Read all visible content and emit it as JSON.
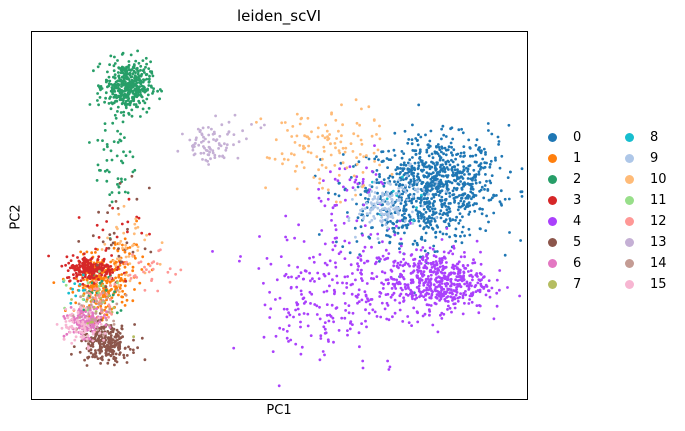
{
  "chart_data": {
    "type": "scatter",
    "title": "leiden_scVI",
    "xlabel": "PC1",
    "ylabel": "PC2",
    "grid": false,
    "xticks": [],
    "yticks": [],
    "xlim": [
      0,
      100
    ],
    "ylim": [
      0,
      100
    ],
    "legend_position": "right",
    "series": [
      {
        "name": "0",
        "color": "#1f77b4",
        "clusters": [
          {
            "cx": 81,
            "cy": 57,
            "sx": 6.5,
            "sy": 7,
            "n": 700
          },
          {
            "cx": 73,
            "cy": 53,
            "sx": 6,
            "sy": 7,
            "n": 140
          },
          {
            "cx": 88,
            "cy": 62,
            "sx": 5,
            "sy": 6,
            "n": 100
          }
        ]
      },
      {
        "name": "1",
        "color": "#ff7f0e",
        "clusters": [
          {
            "cx": 14,
            "cy": 31,
            "sx": 2.5,
            "sy": 4,
            "n": 260
          },
          {
            "cx": 19,
            "cy": 38,
            "sx": 2,
            "sy": 4,
            "n": 40
          }
        ]
      },
      {
        "name": "2",
        "color": "#279e68",
        "clusters": [
          {
            "cx": 19.5,
            "cy": 85,
            "sx": 2.3,
            "sy": 3.3,
            "n": 420
          },
          {
            "cx": 17,
            "cy": 65,
            "sx": 2,
            "sy": 9,
            "n": 55
          },
          {
            "cx": 14,
            "cy": 31,
            "sx": 3,
            "sy": 4,
            "n": 25
          }
        ]
      },
      {
        "name": "3",
        "color": "#d62728",
        "clusters": [
          {
            "cx": 12,
            "cy": 35.5,
            "sx": 2.5,
            "sy": 1.6,
            "n": 200
          },
          {
            "cx": 16,
            "cy": 45,
            "sx": 3,
            "sy": 6,
            "n": 25
          }
        ]
      },
      {
        "name": "4",
        "color": "#aa40fc",
        "clusters": [
          {
            "cx": 82,
            "cy": 32,
            "sx": 5,
            "sy": 4,
            "n": 480
          },
          {
            "cx": 66,
            "cy": 33,
            "sx": 10,
            "sy": 8,
            "n": 260
          },
          {
            "cx": 58,
            "cy": 20,
            "sx": 6,
            "sy": 7,
            "n": 70
          },
          {
            "cx": 66,
            "cy": 58,
            "sx": 4,
            "sy": 4,
            "n": 40
          }
        ]
      },
      {
        "name": "5",
        "color": "#8c564b",
        "clusters": [
          {
            "cx": 15,
            "cy": 15,
            "sx": 2.5,
            "sy": 2.5,
            "n": 250
          },
          {
            "cx": 18,
            "cy": 44,
            "sx": 3,
            "sy": 7,
            "n": 30
          }
        ]
      },
      {
        "name": "6",
        "color": "#e377c2",
        "clusters": [
          {
            "cx": 11,
            "cy": 21,
            "sx": 1.8,
            "sy": 2,
            "n": 140
          }
        ]
      },
      {
        "name": "7",
        "color": "#b5bd61",
        "clusters": [
          {
            "cx": 13,
            "cy": 26,
            "sx": 3,
            "sy": 3,
            "n": 18
          }
        ]
      },
      {
        "name": "8",
        "color": "#17becf",
        "clusters": [
          {
            "cx": 9,
            "cy": 29,
            "sx": 1.5,
            "sy": 2,
            "n": 12
          },
          {
            "cx": 72,
            "cy": 53,
            "sx": 4,
            "sy": 4,
            "n": 10
          }
        ]
      },
      {
        "name": "9",
        "color": "#aec7e8",
        "clusters": [
          {
            "cx": 71,
            "cy": 52,
            "sx": 2.5,
            "sy": 3,
            "n": 110
          },
          {
            "cx": 76,
            "cy": 57,
            "sx": 3,
            "sy": 2.5,
            "n": 30
          }
        ]
      },
      {
        "name": "10",
        "color": "#ffbb78",
        "clusters": [
          {
            "cx": 59,
            "cy": 68,
            "sx": 6,
            "sy": 6,
            "n": 120
          },
          {
            "cx": 20,
            "cy": 40,
            "sx": 2.5,
            "sy": 5,
            "n": 40
          }
        ]
      },
      {
        "name": "11",
        "color": "#98df8a",
        "clusters": [
          {
            "cx": 12,
            "cy": 28,
            "sx": 2.5,
            "sy": 3,
            "n": 12
          }
        ]
      },
      {
        "name": "12",
        "color": "#ff9896",
        "clusters": [
          {
            "cx": 24,
            "cy": 35,
            "sx": 3,
            "sy": 2.5,
            "n": 30
          },
          {
            "cx": 14,
            "cy": 28,
            "sx": 2,
            "sy": 2.5,
            "n": 30
          }
        ]
      },
      {
        "name": "13",
        "color": "#c5b0d5",
        "clusters": [
          {
            "cx": 36,
            "cy": 69,
            "sx": 2.5,
            "sy": 2.5,
            "n": 70
          },
          {
            "cx": 42,
            "cy": 73,
            "sx": 3,
            "sy": 3,
            "n": 15
          }
        ]
      },
      {
        "name": "14",
        "color": "#c49c94",
        "clusters": [
          {
            "cx": 13,
            "cy": 24,
            "sx": 2.5,
            "sy": 3,
            "n": 40
          }
        ]
      },
      {
        "name": "15",
        "color": "#f7b6d2",
        "clusters": [
          {
            "cx": 10,
            "cy": 20,
            "sx": 2.2,
            "sy": 2.5,
            "n": 70
          }
        ]
      }
    ]
  }
}
